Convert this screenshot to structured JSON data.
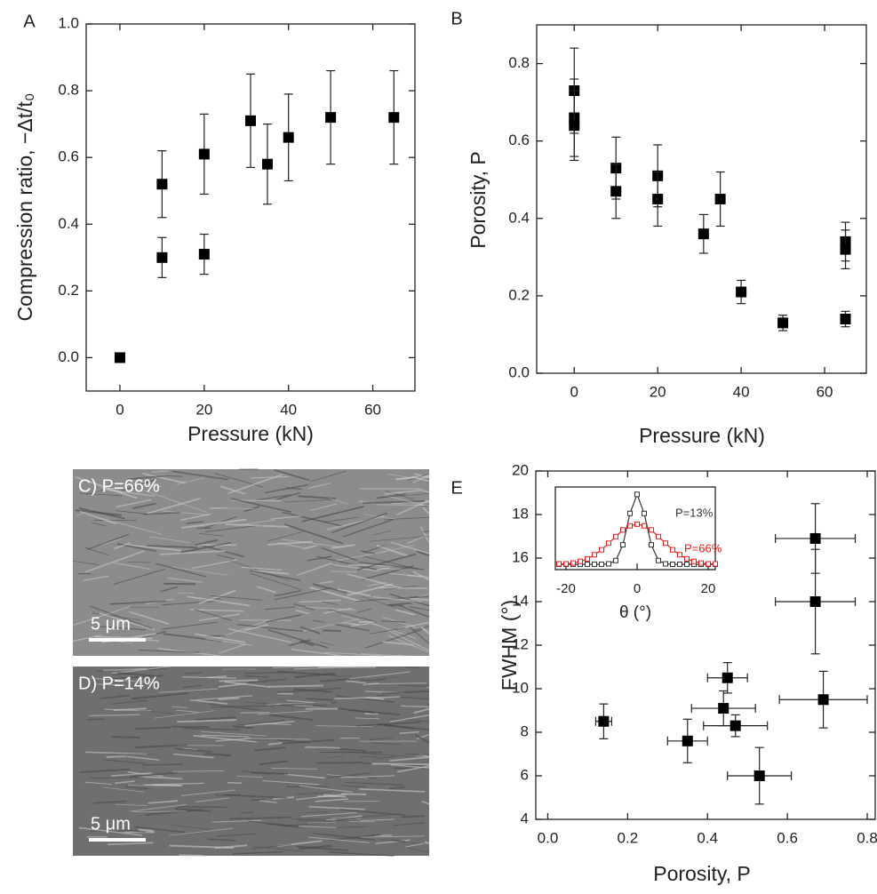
{
  "chart_data": [
    {
      "type": "scatter",
      "panel": "A",
      "xlabel": "Pressure (kN)",
      "ylabel": "Compression ratio, −Δt/t₀",
      "color": "#000000",
      "x": [
        0,
        10,
        10,
        20,
        20,
        31,
        35,
        40,
        50,
        65
      ],
      "values": [
        0.0,
        0.3,
        0.52,
        0.31,
        0.61,
        0.71,
        0.58,
        0.66,
        0.72,
        0.72
      ],
      "yerr": [
        0,
        0.06,
        0.1,
        0.06,
        0.12,
        0.14,
        0.12,
        0.13,
        0.14,
        0.14
      ],
      "xlim": [
        -8,
        70
      ],
      "ylim": [
        -0.1,
        1.0
      ],
      "xticks": [
        0,
        20,
        40,
        60
      ],
      "yticks": [
        {
          "value": 0,
          "label": "0.0"
        },
        {
          "value": 0.2,
          "label": "0.2"
        },
        {
          "value": 0.4,
          "label": "0.4"
        },
        {
          "value": 0.6,
          "label": "0.6"
        },
        {
          "value": 0.8,
          "label": "0.8"
        },
        {
          "value": 1.0,
          "label": "1.0"
        }
      ]
    },
    {
      "type": "scatter",
      "panel": "B",
      "xlabel": "Pressure (kN)",
      "ylabel": "Porosity, P",
      "color": "#000000",
      "x": [
        0,
        0,
        0,
        10,
        10,
        20,
        20,
        31,
        35,
        40,
        50,
        65,
        65,
        65
      ],
      "values": [
        0.73,
        0.66,
        0.64,
        0.53,
        0.47,
        0.51,
        0.45,
        0.36,
        0.45,
        0.21,
        0.13,
        0.34,
        0.32,
        0.14
      ],
      "yerr": [
        0.11,
        0.1,
        0.09,
        0.08,
        0.07,
        0.08,
        0.07,
        0.05,
        0.07,
        0.03,
        0.02,
        0.05,
        0.05,
        0.02
      ],
      "xlim": [
        -9,
        70
      ],
      "ylim": [
        0,
        0.9
      ],
      "xticks": [
        0,
        20,
        40,
        60
      ],
      "yticks": [
        {
          "value": 0,
          "label": "0.0"
        },
        {
          "value": 0.2,
          "label": "0.2"
        },
        {
          "value": 0.4,
          "label": "0.4"
        },
        {
          "value": 0.6,
          "label": "0.6"
        },
        {
          "value": 0.8,
          "label": "0.8"
        }
      ]
    },
    {
      "type": "scatter",
      "panel": "E",
      "xlabel": "Porosity, P",
      "ylabel": "FWHM (°)",
      "color": "#000000",
      "x": [
        0.14,
        0.35,
        0.45,
        0.44,
        0.47,
        0.53,
        0.67,
        0.67,
        0.69
      ],
      "xerr": [
        0.02,
        0.05,
        0.05,
        0.08,
        0.08,
        0.08,
        0.1,
        0.1,
        0.11
      ],
      "values": [
        8.5,
        7.6,
        10.5,
        9.1,
        8.3,
        6.0,
        16.9,
        14.0,
        9.5
      ],
      "yerr": [
        0.8,
        1.0,
        0.7,
        0.8,
        0.5,
        1.3,
        1.6,
        2.4,
        1.3
      ],
      "xlim": [
        -0.03,
        0.82
      ],
      "ylim": [
        4,
        20
      ],
      "xticks": [
        {
          "value": 0,
          "label": "0.0"
        },
        {
          "value": 0.2,
          "label": "0.2"
        },
        {
          "value": 0.4,
          "label": "0.4"
        },
        {
          "value": 0.6,
          "label": "0.6"
        },
        {
          "value": 0.8,
          "label": "0.8"
        }
      ],
      "yticks": [
        4,
        6,
        8,
        10,
        12,
        14,
        16,
        18,
        20
      ]
    },
    {
      "type": "line",
      "xlabel": "θ (°)",
      "x": [
        -22,
        -20,
        -18,
        -16,
        -14,
        -12,
        -10,
        -8,
        -6,
        -4,
        -2,
        0,
        2,
        4,
        6,
        8,
        10,
        12,
        14,
        16,
        18,
        20,
        22
      ],
      "series": [
        {
          "name": "P=13%",
          "color": "#333333",
          "values": [
            0.065,
            0.065,
            0.065,
            0.065,
            0.065,
            0.065,
            0.065,
            0.07,
            0.11,
            0.3,
            0.68,
            0.91,
            0.68,
            0.3,
            0.11,
            0.07,
            0.065,
            0.065,
            0.065,
            0.065,
            0.065,
            0.065,
            0.065
          ]
        },
        {
          "name": "P=66%",
          "color": "#e0201b",
          "values": [
            0.07,
            0.07,
            0.08,
            0.1,
            0.13,
            0.18,
            0.24,
            0.32,
            0.4,
            0.48,
            0.53,
            0.55,
            0.53,
            0.48,
            0.4,
            0.32,
            0.24,
            0.18,
            0.13,
            0.1,
            0.08,
            0.07,
            0.07
          ]
        }
      ],
      "xlim": [
        -23,
        22
      ],
      "ylim": [
        0,
        1
      ],
      "xticks": [
        -20,
        0,
        20
      ]
    }
  ],
  "images": [
    {
      "label": "C) P=66%",
      "scale_label": "5 μm"
    },
    {
      "label": "D) P=14%",
      "scale_label": "5 μm"
    }
  ]
}
